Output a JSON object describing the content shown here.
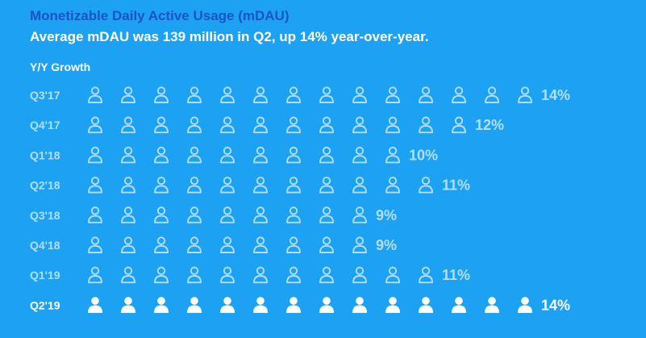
{
  "chart": {
    "title": "Monetizable Daily Active Usage (mDAU)",
    "subtitle": "Average mDAU was 139 million in Q2, up 14% year-over-year.",
    "section_label": "Y/Y Growth"
  },
  "colors": {
    "background": "#1DA1F2",
    "title": "#1a55c8",
    "muted": "#b3dffa",
    "highlight": "#ffffff"
  },
  "icon": "person-icon",
  "chart_data": {
    "type": "pictograph",
    "title": "Monetizable Daily Active Usage (mDAU)",
    "subtitle": "Average mDAU was 139 million in Q2, up 14% year-over-year.",
    "ylabel": "Y/Y Growth",
    "categories": [
      "Q3'17",
      "Q4'17",
      "Q1'18",
      "Q2'18",
      "Q3'18",
      "Q4'18",
      "Q1'19",
      "Q2'19"
    ],
    "values": [
      14,
      12,
      10,
      11,
      9,
      9,
      11,
      14
    ],
    "value_labels": [
      "14%",
      "12%",
      "10%",
      "11%",
      "9%",
      "9%",
      "11%",
      "14%"
    ],
    "unit": "%",
    "highlighted": "Q2'19"
  }
}
